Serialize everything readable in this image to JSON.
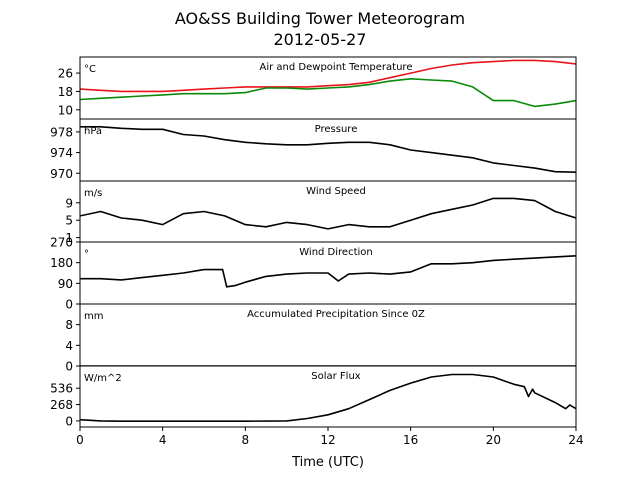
{
  "figure": {
    "title": "AO&SS Building Tower Meteorogram",
    "subtitle": "2012-05-27",
    "xlabel": "Time (UTC)"
  },
  "chart_data": {
    "type": "line",
    "title": "AO&SS Building Tower Meteorogram",
    "subtitle": "2012-05-27",
    "xlabel": "Time (UTC)",
    "xlim": [
      0,
      24
    ],
    "xticks": [
      0,
      4,
      8,
      12,
      16,
      20,
      24
    ],
    "xtick_labels": [
      "0",
      "4",
      "8",
      "12",
      "16",
      "20",
      "24"
    ],
    "panels": [
      {
        "id": "temperature",
        "title": "Air and Dewpoint Temperature",
        "unit": "°C",
        "ylim": [
          6,
          33
        ],
        "yticks": [
          10,
          18,
          26
        ],
        "series": [
          {
            "color": "#e8141a",
            "x": [
              0,
              1,
              2,
              3,
              4,
              5,
              6,
              7,
              8,
              9,
              10,
              11,
              12,
              13,
              14,
              15,
              16,
              17,
              18,
              19,
              20,
              21,
              22,
              23,
              24
            ],
            "y": [
              19,
              18.5,
              18,
              18,
              18,
              18.5,
              19,
              19.5,
              20,
              20,
              20,
              20,
              20.5,
              21,
              22,
              24,
              26,
              28,
              29.5,
              30.5,
              31,
              31.5,
              31.5,
              31,
              30
            ]
          },
          {
            "color": "#098a09",
            "x": [
              0,
              1,
              2,
              3,
              4,
              5,
              6,
              7,
              8,
              9,
              10,
              11,
              12,
              13,
              14,
              15,
              16,
              17,
              18,
              19,
              20,
              21,
              22,
              23,
              24
            ],
            "y": [
              14.5,
              15,
              15.5,
              16,
              16.5,
              17,
              17,
              17,
              17.5,
              19.5,
              19.5,
              19,
              19.5,
              20,
              21,
              22.5,
              23.5,
              23,
              22.5,
              20,
              14,
              14,
              11.5,
              12.5,
              14
            ]
          }
        ]
      },
      {
        "id": "pressure",
        "title": "Pressure",
        "unit": "hPa",
        "ylim": [
          968.5,
          980.5
        ],
        "yticks": [
          970,
          974,
          978
        ],
        "series": [
          {
            "color": "#000000",
            "x": [
              0,
              1,
              2,
              3,
              4,
              5,
              6,
              7,
              8,
              9,
              10,
              11,
              12,
              13,
              14,
              15,
              16,
              17,
              18,
              19,
              20,
              21,
              22,
              23,
              24
            ],
            "y": [
              979,
              979,
              978.7,
              978.5,
              978.5,
              977.5,
              977.2,
              976.5,
              976,
              975.7,
              975.5,
              975.5,
              975.8,
              976,
              976,
              975.5,
              974.5,
              974,
              973.5,
              973,
              972,
              971.5,
              971,
              970.3,
              970.2
            ]
          }
        ]
      },
      {
        "id": "wind_speed",
        "title": "Wind Speed",
        "unit": "m/s",
        "ylim": [
          0,
          14
        ],
        "yticks": [
          1,
          5,
          9
        ],
        "series": [
          {
            "color": "#000000",
            "x": [
              0,
              1,
              2,
              3,
              4,
              5,
              6,
              7,
              8,
              9,
              10,
              11,
              12,
              13,
              14,
              15,
              16,
              17,
              18,
              19,
              20,
              21,
              22,
              23,
              24
            ],
            "y": [
              6,
              7,
              5.5,
              5,
              4,
              6.5,
              7,
              6,
              4,
              3.5,
              4.5,
              4,
              3,
              4,
              3.5,
              3.5,
              5,
              6.5,
              7.5,
              8.5,
              10,
              10,
              9.5,
              7,
              5.5
            ]
          }
        ]
      },
      {
        "id": "wind_direction",
        "title": "Wind Direction",
        "unit": "°",
        "ylim": [
          0,
          270
        ],
        "yticks": [
          0,
          90,
          180,
          270
        ],
        "series": [
          {
            "color": "#000000",
            "x": [
              0,
              1,
              2,
              3,
              4,
              5,
              6,
              6.9,
              7.1,
              7.5,
              8,
              9,
              10,
              11,
              12,
              12.5,
              13,
              14,
              15,
              16,
              17,
              18,
              19,
              20,
              21,
              22,
              23,
              24
            ],
            "y": [
              110,
              110,
              105,
              115,
              125,
              135,
              150,
              150,
              75,
              80,
              95,
              120,
              130,
              135,
              135,
              100,
              130,
              135,
              130,
              140,
              175,
              175,
              180,
              190,
              195,
              200,
              205,
              210
            ]
          }
        ]
      },
      {
        "id": "precip",
        "title": "Accumulated Precipitation Since 0Z",
        "unit": "mm",
        "ylim": [
          0,
          12
        ],
        "yticks": [
          0,
          4,
          8
        ],
        "series": [
          {
            "color": "#000000",
            "x": [
              0,
              24
            ],
            "y": [
              0,
              0
            ]
          }
        ]
      },
      {
        "id": "solar",
        "title": "Solar Flux",
        "unit": "W/m^2",
        "ylim": [
          -100,
          900
        ],
        "yticks": [
          0,
          268,
          536
        ],
        "series": [
          {
            "color": "#000000",
            "x": [
              0,
              1,
              2,
              4,
              6,
              8,
              10,
              11,
              12,
              13,
              14,
              15,
              15.5,
              16,
              17,
              18,
              19,
              20,
              21,
              21.5,
              21.7,
              21.9,
              22,
              23,
              23.5,
              23.7,
              24
            ],
            "y": [
              20,
              0,
              -5,
              -5,
              -5,
              -5,
              0,
              40,
              100,
              200,
              350,
              500,
              560,
              620,
              720,
              760,
              760,
              720,
              600,
              560,
              400,
              520,
              460,
              300,
              200,
              260,
              200
            ]
          }
        ]
      }
    ]
  }
}
